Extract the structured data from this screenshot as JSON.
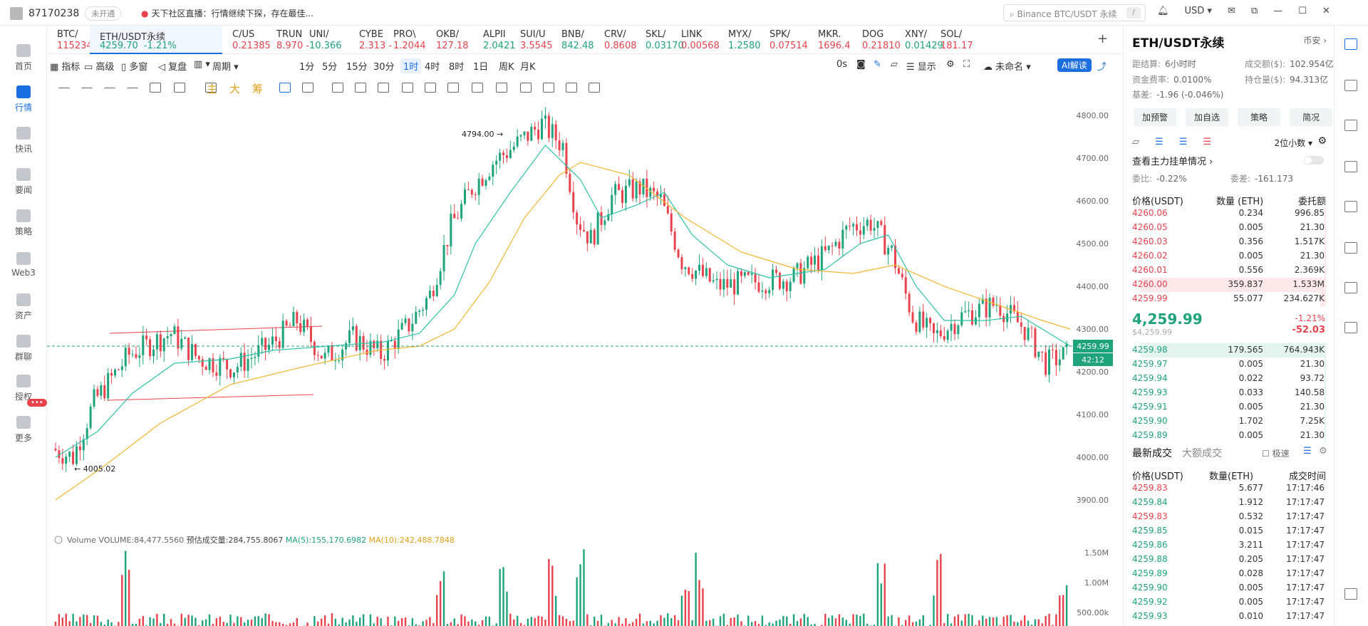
{
  "top": {
    "uid": "87170238",
    "status": "未开通",
    "news": "天下社区直播：行情继续下探，存在最佳...",
    "search_placeholder": "Binance BTC/USDT 永续",
    "search_key": "/",
    "currency": "USD"
  },
  "nav": [
    {
      "label": "首页"
    },
    {
      "label": "行情"
    },
    {
      "label": "快讯"
    },
    {
      "label": "要闻"
    },
    {
      "label": "策略"
    },
    {
      "label": "Web3"
    },
    {
      "label": "资产"
    },
    {
      "label": "群聊"
    },
    {
      "label": "授权"
    },
    {
      "label": "更多"
    }
  ],
  "nav_badge": "•••",
  "tickers": [
    {
      "name": "BTC/",
      "price": "115234.",
      "up": false
    },
    {
      "name": "ETH/USDT永续",
      "price": "4259.70",
      "chg": "-1.21%",
      "up": true
    },
    {
      "name": "C/US",
      "price": "0.21385",
      "up": false
    },
    {
      "name": "TRUN",
      "price": "8.970 -",
      "up": false
    },
    {
      "name": "UNI/",
      "price": "10.366",
      "up": true
    },
    {
      "name": "CYBE",
      "price": "2.313 -",
      "up": false
    },
    {
      "name": "PRO\\",
      "price": "1.2044",
      "up": false
    },
    {
      "name": "OKB/",
      "price": "127.18",
      "up": false
    },
    {
      "name": "ALPII",
      "price": "2.0421",
      "up": true
    },
    {
      "name": "SUI/U",
      "price": "3.5545",
      "up": false
    },
    {
      "name": "BNB/",
      "price": "842.48",
      "up": true
    },
    {
      "name": "CRV/",
      "price": "0.8608",
      "up": false
    },
    {
      "name": "SKL/",
      "price": "0.03170",
      "up": true
    },
    {
      "name": "LINK",
      "price": "0.00568",
      "up": false
    },
    {
      "name": "MYX/",
      "price": "1.2580",
      "up": true
    },
    {
      "name": "SPK/",
      "price": "0.07514",
      "up": false
    },
    {
      "name": "MKR.",
      "price": "1696.4",
      "up": false
    },
    {
      "name": "DOG",
      "price": "0.21810",
      "up": false
    },
    {
      "name": "XNY/",
      "price": "0.01429",
      "up": true
    },
    {
      "name": "SOL/",
      "price": "181.17",
      "up": false
    }
  ],
  "toolbar": {
    "indicators": "指标",
    "advanced": "高级",
    "multi": "多窗",
    "replay": "复盘",
    "period": "周期",
    "intervals": [
      "1分",
      "5分",
      "15分",
      "30分",
      "1时",
      "4时",
      "8时",
      "1日",
      "周K",
      "月K"
    ],
    "active_interval": "1时",
    "countdown": "0s",
    "display": "显示",
    "unnamed": "未命名",
    "ai": "AI解读"
  },
  "draw_chars": [
    "主",
    "大",
    "筹"
  ],
  "chart_data": {
    "type": "candlestick",
    "symbol": "ETH/USDT永续",
    "interval": "1时",
    "ylim": [
      3850,
      4850
    ],
    "yticks": [
      3900,
      4000,
      4100,
      4200,
      4300,
      4400,
      4500,
      4600,
      4700,
      4800
    ],
    "high_label": "4794.00",
    "low_label": "4005.02",
    "last_price": "4259.99",
    "countdown": "42:12",
    "volume_ticks": [
      "1.50M",
      "1.00M",
      "500.00k"
    ],
    "volume_legend": {
      "title": "Volume",
      "vol": "VOLUME:84,477.5560",
      "est": "预估成交量:284,755.8067",
      "ma5": "MA(5):155,170.6982",
      "ma10": "MA(10):242,488.7848"
    },
    "path": [
      [
        0,
        4020
      ],
      [
        6,
        4000
      ],
      [
        12,
        4130
      ],
      [
        22,
        4240
      ],
      [
        34,
        4290
      ],
      [
        42,
        4230
      ],
      [
        52,
        4210
      ],
      [
        62,
        4260
      ],
      [
        70,
        4320
      ],
      [
        78,
        4230
      ],
      [
        86,
        4280
      ],
      [
        94,
        4240
      ],
      [
        102,
        4310
      ],
      [
        108,
        4380
      ],
      [
        114,
        4540
      ],
      [
        120,
        4630
      ],
      [
        126,
        4690
      ],
      [
        134,
        4740
      ],
      [
        140,
        4780
      ],
      [
        146,
        4730
      ],
      [
        150,
        4560
      ],
      [
        154,
        4510
      ],
      [
        160,
        4610
      ],
      [
        168,
        4630
      ],
      [
        174,
        4600
      ],
      [
        180,
        4460
      ],
      [
        190,
        4400
      ],
      [
        200,
        4410
      ],
      [
        212,
        4420
      ],
      [
        222,
        4480
      ],
      [
        228,
        4540
      ],
      [
        234,
        4550
      ],
      [
        240,
        4480
      ],
      [
        246,
        4330
      ],
      [
        252,
        4280
      ],
      [
        260,
        4330
      ],
      [
        270,
        4360
      ],
      [
        278,
        4300
      ],
      [
        284,
        4220
      ],
      [
        290,
        4240
      ]
    ],
    "ma_short": [
      [
        0,
        4000
      ],
      [
        12,
        4060
      ],
      [
        22,
        4150
      ],
      [
        34,
        4220
      ],
      [
        50,
        4230
      ],
      [
        62,
        4250
      ],
      [
        78,
        4260
      ],
      [
        94,
        4270
      ],
      [
        104,
        4290
      ],
      [
        114,
        4380
      ],
      [
        120,
        4500
      ],
      [
        130,
        4620
      ],
      [
        140,
        4730
      ],
      [
        150,
        4650
      ],
      [
        156,
        4560
      ],
      [
        166,
        4590
      ],
      [
        174,
        4620
      ],
      [
        182,
        4520
      ],
      [
        192,
        4450
      ],
      [
        204,
        4420
      ],
      [
        220,
        4440
      ],
      [
        230,
        4500
      ],
      [
        238,
        4520
      ],
      [
        246,
        4400
      ],
      [
        254,
        4320
      ],
      [
        266,
        4320
      ],
      [
        276,
        4330
      ],
      [
        284,
        4290
      ],
      [
        290,
        4260
      ]
    ],
    "ma_long": [
      [
        0,
        3900
      ],
      [
        14,
        3980
      ],
      [
        30,
        4080
      ],
      [
        50,
        4170
      ],
      [
        70,
        4210
      ],
      [
        92,
        4250
      ],
      [
        104,
        4260
      ],
      [
        114,
        4300
      ],
      [
        124,
        4410
      ],
      [
        134,
        4560
      ],
      [
        144,
        4660
      ],
      [
        150,
        4690
      ],
      [
        164,
        4660
      ],
      [
        180,
        4560
      ],
      [
        196,
        4480
      ],
      [
        212,
        4440
      ],
      [
        228,
        4430
      ],
      [
        240,
        4450
      ],
      [
        254,
        4400
      ],
      [
        268,
        4360
      ],
      [
        282,
        4320
      ],
      [
        290,
        4300
      ]
    ]
  },
  "rpanel": {
    "title": "ETH/USDT永续",
    "exchange": "币安",
    "settle_label": "距结算:",
    "settle": "6小时时",
    "vol_label": "成交额($):",
    "vol": "102.954亿",
    "fund_label": "资金费率:",
    "fund": "0.0100%",
    "oi_label": "持仓量($):",
    "oi": "94.313亿",
    "basis_label": "基差:",
    "basis": "-1.96 (-0.046%)",
    "buttons": [
      "加预警",
      "加自选",
      "策略",
      "简况"
    ],
    "decimals": "2位小数",
    "depth_link": "查看主力挂单情况",
    "ratio_label": "委比:",
    "ratio": "-0.22%",
    "diff_label": "委差:",
    "diff": "-161.173",
    "ob_cols": [
      "价格(USDT)",
      "数量 (ETH)",
      "委托额"
    ],
    "asks": [
      [
        "4260.06",
        "0.234",
        "996.85"
      ],
      [
        "4260.05",
        "0.005",
        "21.30"
      ],
      [
        "4260.03",
        "0.356",
        "1.517K"
      ],
      [
        "4260.02",
        "0.005",
        "21.30"
      ],
      [
        "4260.01",
        "0.556",
        "2.369K"
      ],
      [
        "4260.00",
        "359.837",
        "1.533M"
      ],
      [
        "4259.99",
        "55.077",
        "234.627K"
      ]
    ],
    "last": "4,259.99",
    "last_usd": "$4,259.99",
    "last_chg": "-1.21%",
    "last_diff": "-52.03",
    "bids": [
      [
        "4259.98",
        "179.565",
        "764.943K"
      ],
      [
        "4259.97",
        "0.005",
        "21.30"
      ],
      [
        "4259.94",
        "0.022",
        "93.72"
      ],
      [
        "4259.93",
        "0.033",
        "140.58"
      ],
      [
        "4259.91",
        "0.005",
        "21.30"
      ],
      [
        "4259.90",
        "1.702",
        "7.25K"
      ],
      [
        "4259.89",
        "0.005",
        "21.30"
      ]
    ],
    "trade_tab1": "最新成交",
    "trade_tab2": "大额成交",
    "fast": "极速",
    "tr_cols": [
      "价格(USDT)",
      "数量(ETH)",
      "成交时间"
    ],
    "trades": [
      [
        "4259.83",
        "5.677",
        "17:17:46",
        false
      ],
      [
        "4259.84",
        "1.912",
        "17:17:47",
        true
      ],
      [
        "4259.83",
        "0.532",
        "17:17:47",
        false
      ],
      [
        "4259.85",
        "0.015",
        "17:17:47",
        true
      ],
      [
        "4259.86",
        "3.211",
        "17:17:47",
        true
      ],
      [
        "4259.88",
        "0.205",
        "17:17:47",
        true
      ],
      [
        "4259.89",
        "0.028",
        "17:17:47",
        true
      ],
      [
        "4259.90",
        "0.005",
        "17:17:47",
        true
      ],
      [
        "4259.92",
        "0.005",
        "17:17:47",
        true
      ],
      [
        "4259.93",
        "0.010",
        "17:17:47",
        true
      ]
    ]
  }
}
